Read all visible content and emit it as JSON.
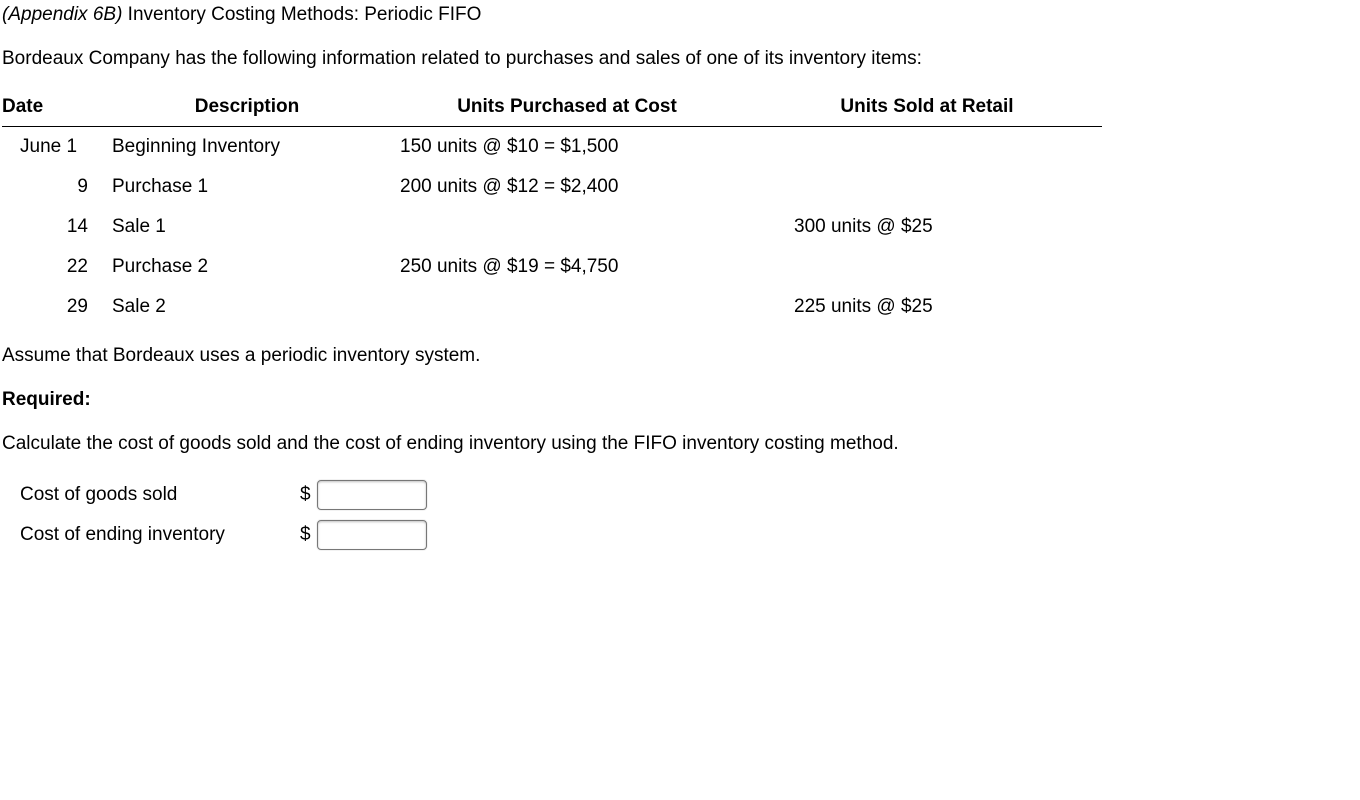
{
  "title": {
    "appendix": "(Appendix 6B)",
    "rest": " Inventory Costing Methods: Periodic FIFO"
  },
  "intro": "Bordeaux Company has the following information related to purchases and sales of one of its inventory items:",
  "table": {
    "headers": {
      "date": "Date",
      "description": "Description",
      "purchased": "Units Purchased at Cost",
      "sold": "Units Sold at Retail"
    },
    "rows": [
      {
        "date": "June 1",
        "is_month": true,
        "description": "Beginning Inventory",
        "purchased": "150 units @ $10 = $1,500",
        "sold": ""
      },
      {
        "date": "9",
        "is_month": false,
        "description": "Purchase 1",
        "purchased": "200 units @ $12 = $2,400",
        "sold": ""
      },
      {
        "date": "14",
        "is_month": false,
        "description": "Sale 1",
        "purchased": "",
        "sold": "300 units @ $25"
      },
      {
        "date": "22",
        "is_month": false,
        "description": "Purchase 2",
        "purchased": "250 units @ $19 = $4,750",
        "sold": ""
      },
      {
        "date": "29",
        "is_month": false,
        "description": "Sale 2",
        "purchased": "",
        "sold": "225 units @ $25"
      }
    ]
  },
  "assume": "Assume that Bordeaux uses a periodic inventory system.",
  "required_label": "Required:",
  "required_text": "Calculate the cost of goods sold and the cost of ending inventory using the FIFO inventory costing method.",
  "answers": {
    "cogs_label": "Cost of goods sold",
    "ending_label": "Cost of ending inventory",
    "currency": "$",
    "cogs_value": "",
    "ending_value": ""
  }
}
